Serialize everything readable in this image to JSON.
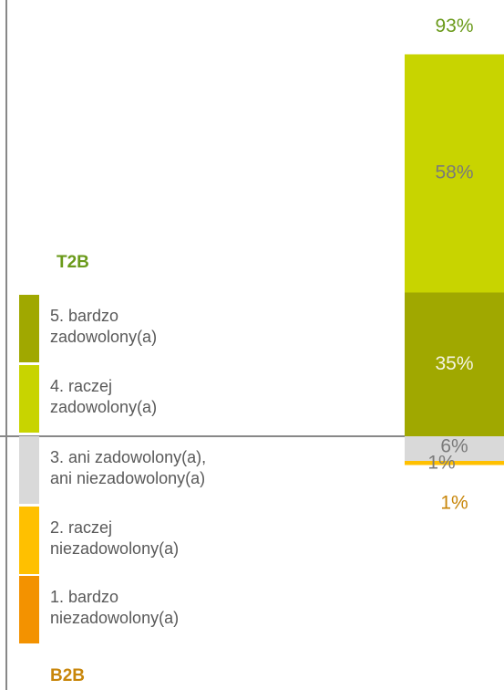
{
  "chart_data": {
    "type": "stacked_bar",
    "series": [
      {
        "name": "5. bardzo zadowolony(a)",
        "color": "#a0a800",
        "values": [
          35
        ],
        "value_labels": [
          "35%"
        ],
        "label_color": "#f4f4e4"
      },
      {
        "name": "4. raczej zadowolony(a)",
        "color": "#c8d400",
        "values": [
          58
        ],
        "value_labels": [
          "58%"
        ],
        "label_color": "#7a7a7a"
      },
      {
        "name": "3. ani zadowolony(a), ani niezadowolony(a)",
        "color": "#d9d9d9",
        "values": [
          6
        ],
        "value_labels": [
          "6%"
        ],
        "label_color": "#7a7a7a"
      },
      {
        "name": "2. raczej niezadowolony(a)",
        "color": "#ffc000",
        "values": [
          1
        ],
        "value_labels": [
          "1%"
        ],
        "label_color": "#7a7a7a"
      },
      {
        "name": "1. bardzo niezadowolony(a)",
        "color": "#f39200",
        "values": [
          0
        ]
      }
    ],
    "top_box": {
      "label": "T2B",
      "value": 93,
      "value_label": "93%",
      "color": "#6a9a1a"
    },
    "bottom_box": {
      "label": "B2B",
      "value": 1,
      "value_label": "1%",
      "color": "#c8860a"
    }
  }
}
